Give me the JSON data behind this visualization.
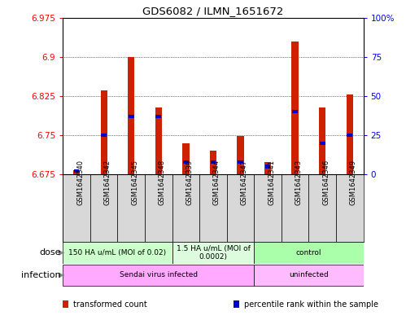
{
  "title": "GDS6082 / ILMN_1651672",
  "samples": [
    "GSM1642340",
    "GSM1642342",
    "GSM1642345",
    "GSM1642348",
    "GSM1642339",
    "GSM1642344",
    "GSM1642347",
    "GSM1642341",
    "GSM1642343",
    "GSM1642346",
    "GSM1642349"
  ],
  "transformed_count": [
    6.683,
    6.835,
    6.9,
    6.803,
    6.735,
    6.72,
    6.748,
    6.698,
    6.93,
    6.803,
    6.828
  ],
  "percentile_rank": [
    2,
    25,
    37,
    37,
    8,
    8,
    8,
    5,
    40,
    20,
    25
  ],
  "y_min": 6.675,
  "y_max": 6.975,
  "y_ticks": [
    6.675,
    6.75,
    6.825,
    6.9,
    6.975
  ],
  "y_tick_labels": [
    "6.675",
    "6.75",
    "6.825",
    "6.9",
    "6.975"
  ],
  "right_y_ticks": [
    0,
    25,
    50,
    75,
    100
  ],
  "right_y_labels": [
    "0",
    "25",
    "50",
    "75",
    "100%"
  ],
  "bar_color": "#cc2200",
  "percentile_color": "#0000cc",
  "dose_groups": [
    {
      "label": "150 HA u/mL (MOI of 0.02)",
      "start": 0,
      "end": 4,
      "color": "#ccffcc"
    },
    {
      "label": "1.5 HA u/mL (MOI of\n0.0002)",
      "start": 4,
      "end": 7,
      "color": "#ddfcdd"
    },
    {
      "label": "control",
      "start": 7,
      "end": 11,
      "color": "#aaffaa"
    }
  ],
  "infection_groups": [
    {
      "label": "Sendai virus infected",
      "start": 0,
      "end": 7,
      "color": "#ffaaff"
    },
    {
      "label": "uninfected",
      "start": 7,
      "end": 11,
      "color": "#ffbbff"
    }
  ],
  "dose_label": "dose",
  "infection_label": "infection",
  "legend_items": [
    {
      "label": "transformed count",
      "color": "#cc2200"
    },
    {
      "label": "percentile rank within the sample",
      "color": "#0000cc"
    }
  ],
  "bg_color": "#ffffff",
  "plot_bg": "#ffffff",
  "sample_bg": "#d8d8d8",
  "grid_color": "#000000",
  "bar_width": 0.25
}
